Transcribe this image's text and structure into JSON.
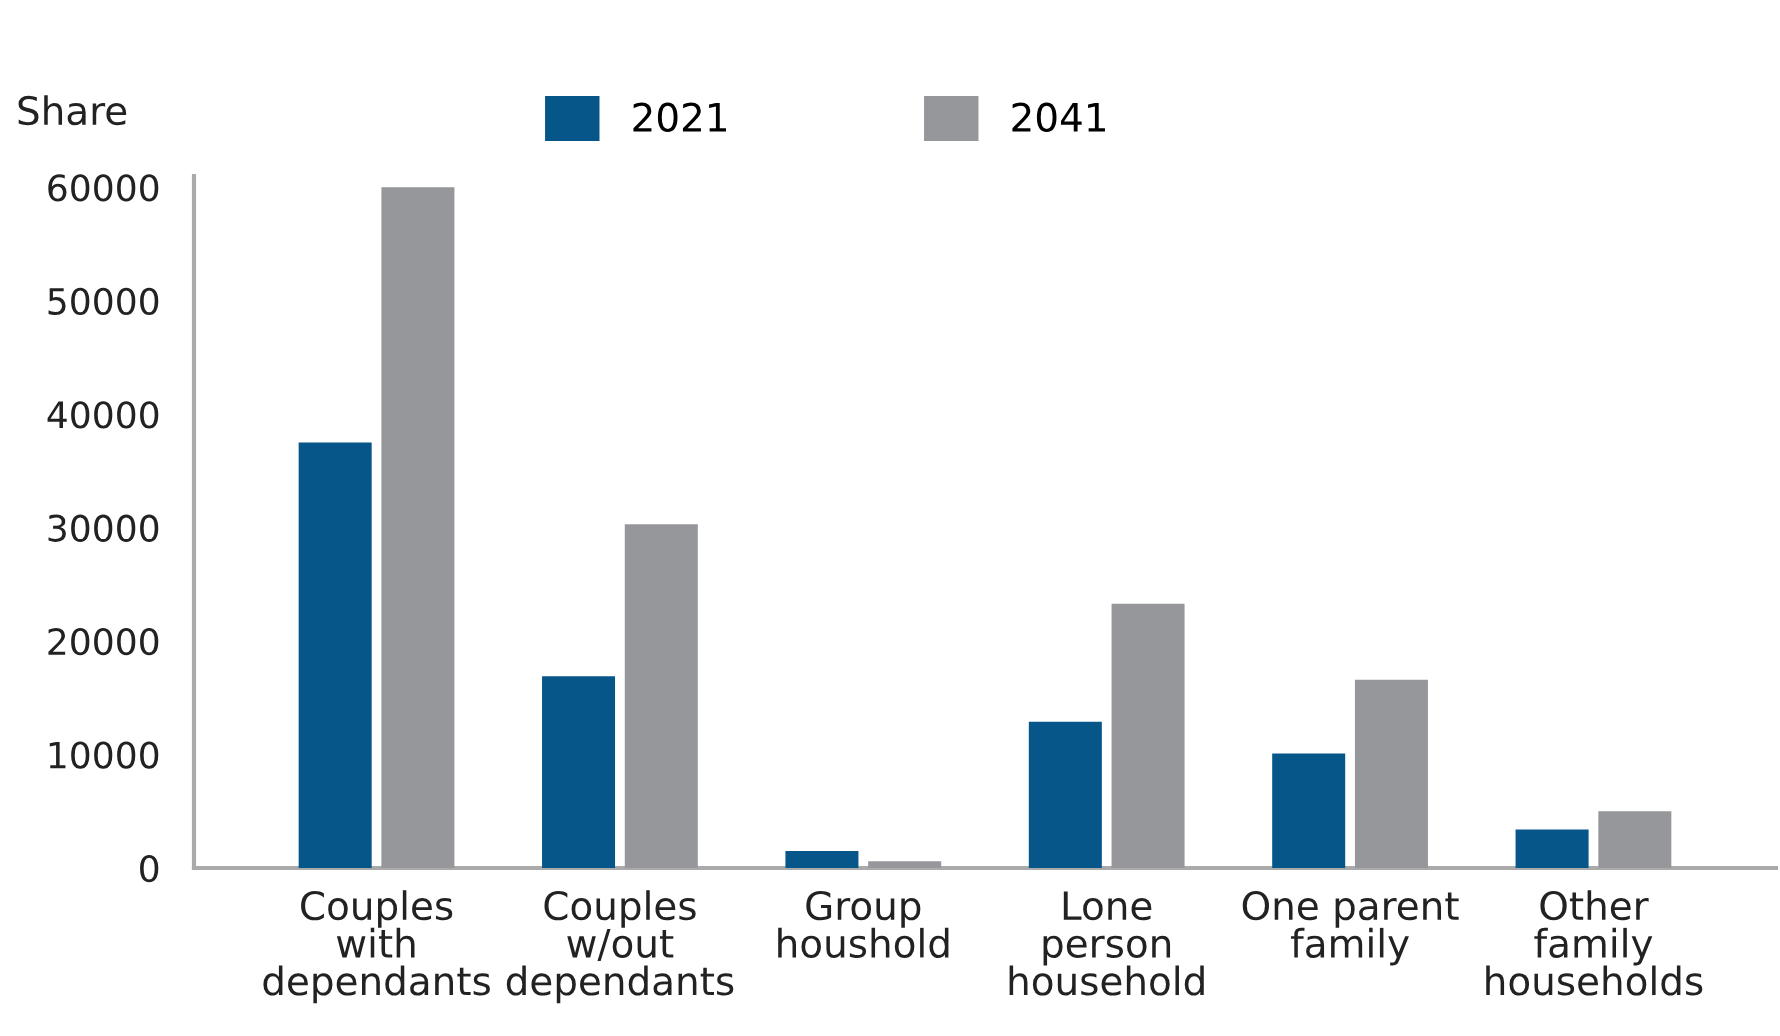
{
  "chart_data": {
    "type": "bar",
    "ylabel": "Share",
    "categories": [
      "Couples\nwith\ndependants",
      "Couples\nw/out\ndependants",
      "Group\nhoushold",
      "Lone\nperson\nhousehold",
      "One parent\nfamily",
      "Other\nfamily\nhouseholds"
    ],
    "series": [
      {
        "name": "2021",
        "color": "#06568a",
        "values": [
          37500,
          16900,
          1500,
          12900,
          10100,
          3400
        ]
      },
      {
        "name": "2041",
        "color": "#96979b",
        "values": [
          60000,
          30300,
          600,
          23300,
          16600,
          5000
        ]
      }
    ],
    "ylim": [
      0,
      61000
    ],
    "yticks": [
      0,
      10000,
      20000,
      30000,
      40000,
      50000,
      60000
    ],
    "grid": false,
    "legend": "top"
  }
}
